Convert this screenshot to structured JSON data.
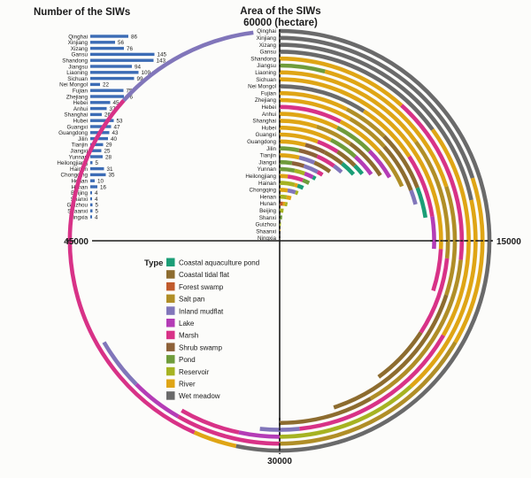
{
  "bar_chart_title": "Number of the SIWs",
  "radial_title_line1": "Area of the SIWs",
  "radial_title_line2": "60000 (hectare)",
  "axis_ticks": {
    "top": "60000",
    "right": "15000",
    "bottom": "30000",
    "left": "45000"
  },
  "legend": {
    "title": "Type"
  },
  "colors": {
    "bar_blue": "#3c6cb5",
    "axis_line": "#1b1b1b"
  },
  "chart_data": [
    {
      "type": "bar",
      "orientation": "horizontal",
      "title": "Number of the SIWs",
      "bar_color": "#3c6cb5",
      "xlim": [
        0,
        145
      ],
      "categories": [
        "Qinghai",
        "Xinjiang",
        "Xizang",
        "Gansu",
        "Shandong",
        "Jiangsu",
        "Liaoning",
        "Sichuan",
        "Nei Mongol",
        "Fujian",
        "Zhejiang",
        "Hebei",
        "Anhui",
        "Shanghai",
        "Hubei",
        "Guangxi",
        "Guangdong",
        "Jilin",
        "Tianjin",
        "Jiangxi",
        "Yunnan",
        "Heilongjiang",
        "Hainan",
        "Chongqing",
        "Henan",
        "Hunan",
        "Beijing",
        "Shanxi",
        "Guizhou",
        "Shaanxi",
        "Ningxia"
      ],
      "values": [
        86,
        56,
        76,
        145,
        143,
        94,
        109,
        99,
        22,
        75,
        76,
        45,
        37,
        26,
        53,
        47,
        43,
        40,
        29,
        25,
        28,
        5,
        31,
        35,
        10,
        16,
        4,
        4,
        5,
        5,
        4
      ]
    },
    {
      "type": "radial-stacked-bar",
      "title": "Area of the SIWs",
      "unit": "hectare",
      "full_circle_value": 60000,
      "start": "top",
      "direction": "clockwise",
      "axis_tick_values": [
        60000,
        15000,
        30000,
        45000
      ],
      "legend_title": "Type",
      "types": [
        {
          "name": "Coastal aquaculture pond",
          "color": "#1b9e77"
        },
        {
          "name": "Coastal tidal flat",
          "color": "#8d6c2f"
        },
        {
          "name": "Forest swamp",
          "color": "#c05a2c"
        },
        {
          "name": "Salt pan",
          "color": "#b08e27"
        },
        {
          "name": "Inland mudflat",
          "color": "#8176ba"
        },
        {
          "name": "Lake",
          "color": "#b43cb6"
        },
        {
          "name": "Marsh",
          "color": "#d83287"
        },
        {
          "name": "Shrub swamp",
          "color": "#8d6138"
        },
        {
          "name": "Pond",
          "color": "#6f9c3b"
        },
        {
          "name": "Reservoir",
          "color": "#a6b322"
        },
        {
          "name": "River",
          "color": "#dfa515"
        },
        {
          "name": "Wet meadow",
          "color": "#6a6a6a"
        }
      ],
      "categories": [
        "Qinghai",
        "Xinjiang",
        "Xizang",
        "Gansu",
        "Shandong",
        "Jiangsu",
        "Liaoning",
        "Sichuan",
        "Nei Mongol",
        "Fujian",
        "Zhejiang",
        "Hebei",
        "Anhui",
        "Shanghai",
        "Hubei",
        "Guangxi",
        "Guangdong",
        "Jilin",
        "Tianjin",
        "Jiangxi",
        "Yunnan",
        "Heilongjiang",
        "Hainan",
        "Chongqing",
        "Henan",
        "Hunan",
        "Beijing",
        "Shanxi",
        "Guizhou",
        "Shaanxi",
        "Ningxia"
      ],
      "series": [
        {
          "province": "Qinghai",
          "segments": [
            [
              "Wet meadow",
              32000
            ],
            [
              "River",
              2000
            ],
            [
              "Marsh",
              18000
            ],
            [
              "Inland mudflat",
              6800
            ]
          ]
        },
        {
          "province": "Xinjiang",
          "segments": [
            [
              "Wet meadow",
              12000
            ],
            [
              "River",
              8000
            ],
            [
              "Salt pan",
              10000
            ],
            [
              "Marsh",
              5000
            ],
            [
              "Lake",
              2500
            ],
            [
              "Inland mudflat",
              2500
            ]
          ]
        },
        {
          "province": "Xizang",
          "segments": [
            [
              "Wet meadow",
              13000
            ],
            [
              "River",
              10000
            ],
            [
              "Reservoir",
              7000
            ],
            [
              "Lake",
              2000
            ],
            [
              "Marsh",
              3000
            ]
          ]
        },
        {
          "province": "Gansu",
          "segments": [
            [
              "Wet meadow",
              9000
            ],
            [
              "River",
              11000
            ],
            [
              "Marsh",
              9000
            ],
            [
              "Inland mudflat",
              2000
            ]
          ]
        },
        {
          "province": "Shandong",
          "segments": [
            [
              "River",
              7000
            ],
            [
              "Marsh",
              9000
            ],
            [
              "Salt pan",
              9000
            ],
            [
              "Coastal tidal flat",
              5000
            ]
          ]
        },
        {
          "province": "Jiangsu",
          "segments": [
            [
              "Pond",
              2500
            ],
            [
              "River",
              9500
            ],
            [
              "Salt pan",
              6000
            ],
            [
              "Coastal tidal flat",
              9000
            ]
          ]
        },
        {
          "province": "Liaoning",
          "segments": [
            [
              "River",
              9000
            ],
            [
              "Salt pan",
              7000
            ],
            [
              "Marsh",
              4500
            ],
            [
              "Coastal tidal flat",
              3500
            ]
          ]
        },
        {
          "province": "Sichuan",
          "segments": [
            [
              "River",
              15500
            ],
            [
              "Marsh",
              2500
            ]
          ]
        },
        {
          "province": "Nei Mongol",
          "segments": [
            [
              "Wet meadow",
              5500
            ],
            [
              "River",
              4000
            ],
            [
              "Marsh",
              4000
            ],
            [
              "Lake",
              2000
            ]
          ]
        },
        {
          "province": "Fujian",
          "segments": [
            [
              "River",
              4500
            ],
            [
              "Salt pan",
              3000
            ],
            [
              "Coastal tidal flat",
              4000
            ],
            [
              "Coastal aquaculture pond",
              2000
            ]
          ]
        },
        {
          "province": "Zhejiang",
          "segments": [
            [
              "River",
              5000
            ],
            [
              "Salt pan",
              3000
            ],
            [
              "Coastal tidal flat",
              3500
            ],
            [
              "Inland mudflat",
              1000
            ]
          ]
        },
        {
          "province": "Hebei",
          "segments": [
            [
              "Marsh",
              4500
            ],
            [
              "River",
              3500
            ],
            [
              "Salt pan",
              3000
            ]
          ]
        },
        {
          "province": "Anhui",
          "segments": [
            [
              "River",
              4500
            ],
            [
              "Pond",
              3000
            ],
            [
              "Lake",
              2500
            ]
          ]
        },
        {
          "province": "Shanghai",
          "segments": [
            [
              "River",
              3000
            ],
            [
              "Salt pan",
              3000
            ],
            [
              "Coastal tidal flat",
              3500
            ]
          ]
        },
        {
          "province": "Hubei",
          "segments": [
            [
              "River",
              4500
            ],
            [
              "Pond",
              2500
            ],
            [
              "Lake",
              2000
            ]
          ]
        },
        {
          "province": "Guangxi",
          "segments": [
            [
              "River",
              3500
            ],
            [
              "Marsh",
              2000
            ],
            [
              "Coastal tidal flat",
              2000
            ],
            [
              "Coastal aquaculture pond",
              1000
            ]
          ]
        },
        {
          "province": "Guangdong",
          "segments": [
            [
              "River",
              2500
            ],
            [
              "Shrub swamp",
              2000
            ],
            [
              "Coastal tidal flat",
              2000
            ],
            [
              "Coastal aquaculture pond",
              1500
            ]
          ]
        },
        {
          "province": "Jilin",
          "segments": [
            [
              "Pond",
              2000
            ],
            [
              "Shrub swamp",
              2000
            ],
            [
              "Marsh",
              2000
            ],
            [
              "Inland mudflat",
              1000
            ]
          ]
        },
        {
          "province": "Tianjin",
          "segments": [
            [
              "River",
              2200
            ],
            [
              "Inland mudflat",
              1800
            ],
            [
              "Coastal tidal flat",
              2000
            ]
          ]
        },
        {
          "province": "Jiangxi",
          "segments": [
            [
              "Pond",
              1500
            ],
            [
              "Shrub swamp",
              1500
            ],
            [
              "Inland mudflat",
              1800
            ],
            [
              "Marsh",
              700
            ]
          ]
        },
        {
          "province": "Yunnan",
          "segments": [
            [
              "Pond",
              2000
            ],
            [
              "Reservoir",
              1400
            ],
            [
              "Lake",
              1200
            ],
            [
              "Coastal aquaculture pond",
              400
            ]
          ]
        },
        {
          "province": "Heilongjiang",
          "segments": [
            [
              "River",
              1200
            ],
            [
              "Marsh",
              2300
            ],
            [
              "Pond",
              1000
            ]
          ]
        },
        {
          "province": "Hainan",
          "segments": [
            [
              "Reservoir",
              2500
            ],
            [
              "River",
              500
            ],
            [
              "Coastal aquaculture pond",
              1000
            ]
          ]
        },
        {
          "province": "Chongqing",
          "segments": [
            [
              "River",
              1500
            ],
            [
              "Inland mudflat",
              1500
            ],
            [
              "Reservoir",
              500
            ]
          ]
        },
        {
          "province": "Henan",
          "segments": [
            [
              "Reservoir",
              1500
            ],
            [
              "River",
              1000
            ]
          ]
        },
        {
          "province": "Hunan",
          "segments": [
            [
              "Forest swamp",
              800
            ],
            [
              "River",
              600
            ],
            [
              "Reservoir",
              600
            ]
          ]
        },
        {
          "province": "Beijing",
          "segments": [
            [
              "Reservoir",
              1200
            ]
          ]
        },
        {
          "province": "Shanxi",
          "segments": [
            [
              "Pond",
              1000
            ]
          ]
        },
        {
          "province": "Guizhou",
          "segments": [
            [
              "Reservoir",
              700
            ]
          ]
        },
        {
          "province": "Shaanxi",
          "segments": [
            [
              "River",
              500
            ]
          ]
        },
        {
          "province": "Ningxia",
          "segments": [
            [
              "Reservoir",
              400
            ]
          ]
        }
      ]
    }
  ]
}
